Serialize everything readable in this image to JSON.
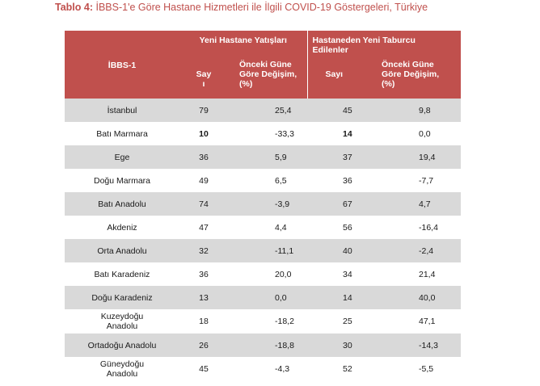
{
  "title": {
    "label": "Tablo 4:",
    "text": "İBBS-1'e Göre Hastane Hizmetleri ile İlgili COVID-19 Göstergeleri, Türkiye"
  },
  "header": {
    "col_region": "İBBS-1",
    "group1": "Yeni Hastane Yatışları",
    "group2_line1": "Hastaneden Yeni Taburcu",
    "group2_line2": "Edilenler",
    "g1_count_line1": "Say",
    "g1_count_line2": "ı",
    "g1_change_line1": "Önceki Güne",
    "g1_change_line2": "Göre Değişim,",
    "g1_change_line3": "(%)",
    "g2_count": "Sayı",
    "g2_change_line1": "Önceki Güne",
    "g2_change_line2": "Göre Değişim,",
    "g2_change_line3": "(%)"
  },
  "rows": [
    {
      "region_line1": "İstanbul",
      "region_line2": "",
      "admissions": "79",
      "adm_change": "25,4",
      "discharges": "45",
      "dis_change": "9,8",
      "bold_dis": false
    },
    {
      "region_line1": "Batı Marmara",
      "region_line2": "",
      "admissions": "10",
      "adm_change": "-33,3",
      "discharges": "14",
      "dis_change": "0,0",
      "bold_dis": true
    },
    {
      "region_line1": "Ege",
      "region_line2": "",
      "admissions": "36",
      "adm_change": "5,9",
      "discharges": "37",
      "dis_change": "19,4",
      "bold_dis": false
    },
    {
      "region_line1": "Doğu Marmara",
      "region_line2": "",
      "admissions": "49",
      "adm_change": "6,5",
      "discharges": "36",
      "dis_change": "-7,7",
      "bold_dis": false
    },
    {
      "region_line1": "Batı Anadolu",
      "region_line2": "",
      "admissions": "74",
      "adm_change": "-3,9",
      "discharges": "67",
      "dis_change": "4,7",
      "bold_dis": false
    },
    {
      "region_line1": "Akdeniz",
      "region_line2": "",
      "admissions": "47",
      "adm_change": "4,4",
      "discharges": "56",
      "dis_change": "-16,4",
      "bold_dis": false
    },
    {
      "region_line1": "Orta Anadolu",
      "region_line2": "",
      "admissions": "32",
      "adm_change": "-11,1",
      "discharges": "40",
      "dis_change": "-2,4",
      "bold_dis": false
    },
    {
      "region_line1": "Batı Karadeniz",
      "region_line2": "",
      "admissions": "36",
      "adm_change": "20,0",
      "discharges": "34",
      "dis_change": "21,4",
      "bold_dis": false
    },
    {
      "region_line1": "Doğu Karadeniz",
      "region_line2": "",
      "admissions": "13",
      "adm_change": "0,0",
      "discharges": "14",
      "dis_change": "40,0",
      "bold_dis": false
    },
    {
      "region_line1": "Kuzeydoğu",
      "region_line2": "Anadolu",
      "admissions": "18",
      "adm_change": "-18,2",
      "discharges": "25",
      "dis_change": "47,1",
      "bold_dis": false
    },
    {
      "region_line1": "Ortadoğu Anadolu",
      "region_line2": "",
      "admissions": "26",
      "adm_change": "-18,8",
      "discharges": "30",
      "dis_change": "-14,3",
      "bold_dis": false
    },
    {
      "region_line1": "Güneydoğu",
      "region_line2": "Anadolu",
      "admissions": "45",
      "adm_change": "-4,3",
      "discharges": "52",
      "dis_change": "-5,5",
      "bold_dis": false
    }
  ],
  "colors": {
    "header_bg": "#c0504d",
    "title_color": "#c0504d",
    "stripe": "#d9d9d9"
  }
}
